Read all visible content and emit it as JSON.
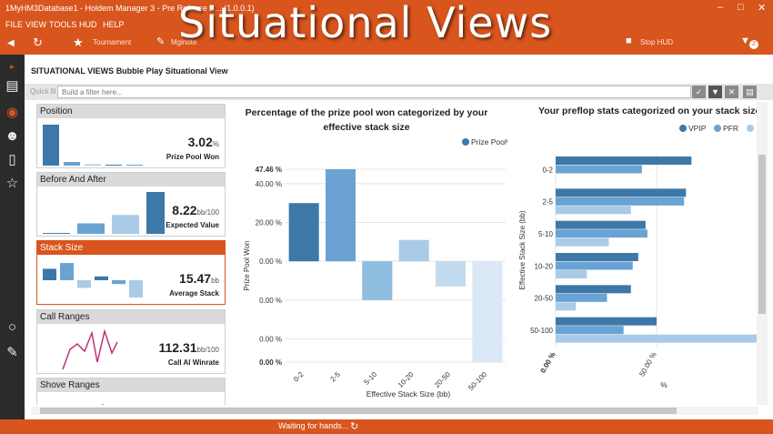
{
  "window": {
    "title": "1MyHM3Database1 - Holdem Manager 3 - Pre Release B... (1.0.0.1)",
    "controls": [
      "minimize-icon",
      "maximize-icon",
      "close-icon"
    ]
  },
  "overlay_title": "Situational Views",
  "menu": [
    "FILE",
    "VIEW",
    "TOOLS",
    "HUD",
    "HELP"
  ],
  "toolbar": {
    "tournament_label": "Tournament",
    "mginote_label": "Mginote",
    "stop_hud_label": "Stop HUD",
    "notification_count": "2"
  },
  "header": {
    "section": "SITUATIONAL VIEWS",
    "view_name": "Bubble Play Situational View"
  },
  "filter": {
    "label": "Quick fil",
    "placeholder": "Build a filter here..."
  },
  "cards": [
    {
      "title": "Position",
      "value": "3.02",
      "unit": "%",
      "label": "Prize Pool Won",
      "bars": [
        0.9,
        0.08,
        0.03,
        0.02,
        0.02
      ]
    },
    {
      "title": "Before And After",
      "value": "8.22",
      "unit": "bb/100",
      "label": "Expected Value",
      "bars": [
        0.02,
        0.25,
        0.45,
        1.0
      ]
    },
    {
      "title": "Stack Size",
      "value": "15.47",
      "unit": "bb",
      "label": "Average Stack",
      "bars": [
        0.3,
        0.45,
        -0.2,
        0.1,
        -0.1,
        -0.45
      ]
    },
    {
      "title": "Call Ranges",
      "value": "112.31",
      "unit": "bb/100",
      "label": "Call AI Winrate"
    },
    {
      "title": "Shove Ranges"
    }
  ],
  "chart_data": [
    {
      "type": "bar",
      "title": "Percentage of the prize pool won categorized by your effective stack size",
      "xlabel": "Effective Stack Size (bb)",
      "ylabel": "Prize Pool Won",
      "categories": [
        "0-2",
        "2-5",
        "5-10",
        "10-20",
        "20-50",
        "50-100"
      ],
      "series": [
        {
          "name": "Prize Pool%",
          "values": [
            30,
            47.46,
            -20,
            11,
            -13,
            -52
          ]
        }
      ],
      "y_tick_labels": [
        "47.46 %",
        "40.00 %",
        "20.00 %",
        "0.00 %",
        "0.00 %",
        "0.00 %",
        "0.00 %"
      ],
      "ylim": [
        -52,
        47.46
      ],
      "legend": "top-right",
      "grid": true
    },
    {
      "type": "bar",
      "orientation": "horizontal",
      "title": "Your preflop stats categorized on your stack size",
      "xlabel": "%",
      "ylabel": "Effective Stack Size (bb)",
      "categories": [
        "0-2",
        "2-5",
        "5-10",
        "10-20",
        "20-50",
        "50-100"
      ],
      "series": [
        {
          "name": "VPIP",
          "values": [
            37,
            35.5,
            24.5,
            22.5,
            20.5,
            27.5
          ]
        },
        {
          "name": "PFR",
          "values": [
            23.5,
            35,
            25,
            21,
            14,
            18.5
          ]
        },
        {
          "name": "",
          "values": [
            0,
            20.5,
            14.5,
            8.5,
            5.5,
            55
          ]
        }
      ],
      "x_tick_labels": [
        "0.00 %",
        "50.00 %"
      ],
      "xlim": [
        0,
        55
      ],
      "legend": "top",
      "grid": true
    }
  ],
  "colors": {
    "accent": "#d8551d",
    "series1": "#3d78a8",
    "series2": "#6aa3d3",
    "series3": "#a9cbe7",
    "negative": "#8fbde0"
  },
  "status": {
    "text": "Waiting for hands..."
  }
}
